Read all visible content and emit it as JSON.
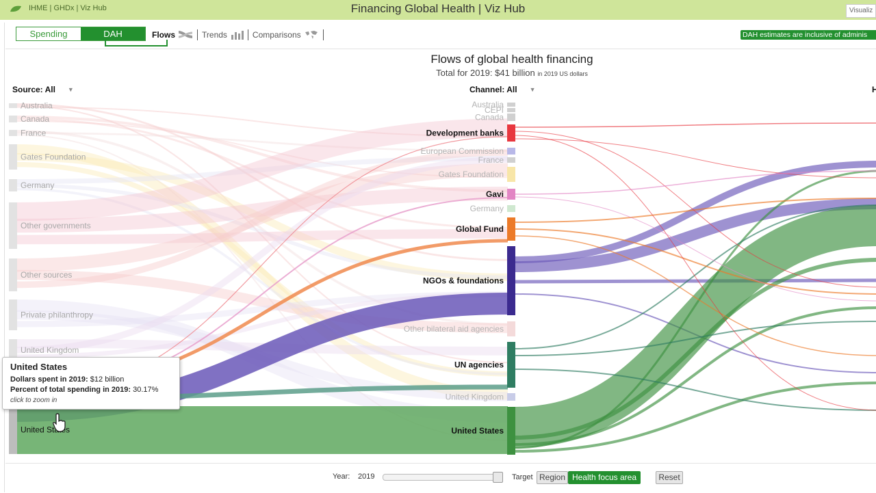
{
  "header": {
    "links": "IHME | GHDx | Viz Hub",
    "title": "Financing Global Health | Viz Hub",
    "right_tab": "Visualiz"
  },
  "toolbar": {
    "toggle": [
      "Spending",
      "DAH"
    ],
    "toggle_selected": "DAH",
    "views": [
      {
        "label": "Flows",
        "icon": "sankey-icon",
        "active": true
      },
      {
        "label": "Trends",
        "icon": "bar-chart-icon",
        "active": false
      },
      {
        "label": "Comparisons",
        "icon": "world-map-icon",
        "active": false
      }
    ],
    "notice": "DAH estimates are inclusive of adminis"
  },
  "chart": {
    "title": "Flows of global health financing",
    "subtitle": "Total for 2019: $41 billion",
    "subtitle_unit": "in 2019 US dollars",
    "source_filter": "Source: All",
    "channel_filter": "Channel: All",
    "right_filter": "H"
  },
  "chart_data": {
    "type": "sankey",
    "sources": [
      {
        "name": "Australia",
        "color": "#d9d9d9"
      },
      {
        "name": "Canada",
        "color": "#d9d9d9"
      },
      {
        "name": "France",
        "color": "#d9d9d9"
      },
      {
        "name": "Gates Foundation",
        "color": "#d9d9d9"
      },
      {
        "name": "Germany",
        "color": "#d9d9d9"
      },
      {
        "name": "Other governments",
        "color": "#d9d9d9"
      },
      {
        "name": "Other sources",
        "color": "#d9d9d9"
      },
      {
        "name": "Private philanthropy",
        "color": "#d9d9d9"
      },
      {
        "name": "United Kingdom",
        "color": "#d9d9d9"
      },
      {
        "name": "United States",
        "color": "#c8c8c8",
        "highlighted": true
      }
    ],
    "channels": [
      {
        "name": "Australia",
        "color": "#d0d0d0",
        "highlighted": false
      },
      {
        "name": "CEPI",
        "color": "#d0d0d0",
        "highlighted": false
      },
      {
        "name": "Canada",
        "color": "#d0d0d0",
        "highlighted": false
      },
      {
        "name": "Development banks",
        "color": "#e8373f",
        "highlighted": true
      },
      {
        "name": "European Commission",
        "color": "#b8b8e8",
        "highlighted": false
      },
      {
        "name": "France",
        "color": "#d0d0d0",
        "highlighted": false
      },
      {
        "name": "Gates Foundation",
        "color": "#f8e6a8",
        "highlighted": false
      },
      {
        "name": "Gavi",
        "color": "#e286c4",
        "highlighted": true
      },
      {
        "name": "Germany",
        "color": "#cfe8d0",
        "highlighted": false
      },
      {
        "name": "Global Fund",
        "color": "#ec7a28",
        "highlighted": true
      },
      {
        "name": "NGOs & foundations",
        "color": "#3b2a8f",
        "highlighted": true
      },
      {
        "name": "Other bilateral aid agencies",
        "color": "#f4dada",
        "highlighted": false
      },
      {
        "name": "UN agencies",
        "color": "#2f7d62",
        "highlighted": true
      },
      {
        "name": "United Kingdom",
        "color": "#c8cce8",
        "highlighted": false
      },
      {
        "name": "United States",
        "color": "#3d9140",
        "highlighted": true
      }
    ],
    "highlighted_source": "United States"
  },
  "tooltip": {
    "name": "United States",
    "line1_label": "Dollars spent in 2019:",
    "line1_value": "$12 billion",
    "line2_label": "Percent of total spending in 2019:",
    "line2_value": "30.17%",
    "hint": "click to zoom in"
  },
  "footer": {
    "year_label": "Year:",
    "year_value": "2019",
    "year_progress": 1.0,
    "target_label": "Target",
    "target_options": [
      "Region",
      "Health focus area"
    ],
    "target_selected": "Health focus area",
    "reset": "Reset"
  }
}
